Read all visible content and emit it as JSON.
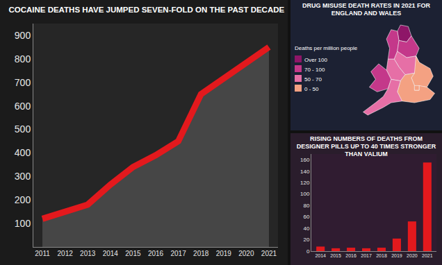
{
  "chart_data": [
    {
      "type": "line",
      "title": "COCAINE DEATHS HAVE JUMPED SEVEN-FOLD ON THE PAST DECADE",
      "x": [
        2011,
        2012,
        2013,
        2014,
        2015,
        2016,
        2017,
        2018,
        2019,
        2020,
        2021
      ],
      "values": [
        120,
        150,
        180,
        265,
        340,
        390,
        450,
        650,
        715,
        780,
        850
      ],
      "color": "#e3191d",
      "xlim": [
        2010.6,
        2021.4
      ],
      "xticks": [
        2011,
        2012,
        2013,
        2014,
        2015,
        2016,
        2017,
        2018,
        2019,
        2020,
        2021
      ],
      "ylim": [
        0,
        950
      ],
      "yticks": [
        100,
        200,
        300,
        400,
        500,
        600,
        700,
        800,
        900
      ],
      "grid": false
    },
    {
      "type": "bar",
      "title": "RISING NUMBERS OF DEATHS FROM DESIGNER PILLS UP TO 40 TIMES STRONGER THAN VALIUM",
      "categories": [
        "2014",
        "2015",
        "2016",
        "2017",
        "2018",
        "2019",
        "2020",
        "2021"
      ],
      "values": [
        8,
        5,
        6,
        5,
        6,
        22,
        52,
        155
      ],
      "color": "#e3191d",
      "ylim": [
        0,
        170
      ],
      "yticks": [
        0,
        20,
        40,
        60,
        80,
        100,
        120,
        140,
        160
      ],
      "grid": false
    }
  ],
  "map": {
    "title": "DRUG MISUSE DEATH RATES IN 2021 FOR ENGLAND AND WALES",
    "legend_title": "Deaths per million people",
    "bands": [
      {
        "label": "Over 100",
        "color": "#8e1668"
      },
      {
        "label": "70 - 100",
        "color": "#c4388a"
      },
      {
        "label": "50 - 70",
        "color": "#e66fa6"
      },
      {
        "label": "0 - 50",
        "color": "#f4a182"
      }
    ],
    "region_bands": [
      "Over 100",
      "70 - 100",
      "70 - 100",
      "50 - 70",
      "50 - 70",
      "0 - 50",
      "70 - 100",
      "0 - 50",
      "0 - 50",
      "50 - 70"
    ]
  }
}
